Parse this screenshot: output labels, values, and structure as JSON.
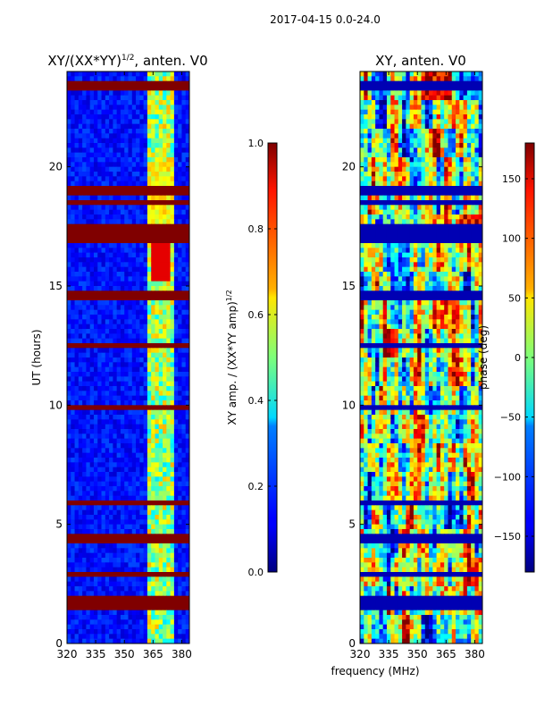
{
  "suptitle": "2017-04-15 0.0-24.0",
  "chart_data": [
    {
      "type": "heatmap",
      "title_main": "XY/(XX*YY)",
      "title_exp": "1/2",
      "title_tail": ", anten. V0",
      "xlabel": "",
      "ylabel": "UT (hours)",
      "xlim": [
        320,
        384
      ],
      "ylim": [
        0,
        24
      ],
      "xticks": [
        320,
        335,
        350,
        365,
        380
      ],
      "yticks": [
        0,
        5,
        10,
        15,
        20
      ],
      "colorbar": {
        "label_main": "XY amp. / (XX*YY amp)",
        "label_exp": "1/2",
        "range": [
          0.0,
          1.0
        ],
        "ticks": [
          "0.0",
          "0.2",
          "0.4",
          "0.6",
          "0.8",
          "1.0"
        ],
        "tick_values": [
          0.0,
          0.2,
          0.4,
          0.6,
          0.8,
          1.0
        ],
        "colormap": "jet"
      }
    },
    {
      "type": "heatmap",
      "title": "XY, anten. V0",
      "xlabel": "frequency (MHz)",
      "ylabel": "",
      "xlim": [
        320,
        384
      ],
      "ylim": [
        0,
        24
      ],
      "xticks": [
        320,
        335,
        350,
        365,
        380
      ],
      "yticks": [
        0,
        5,
        10,
        15,
        20
      ],
      "colorbar": {
        "label": "phase (deg)",
        "range": [
          -180,
          180
        ],
        "ticks": [
          "−150",
          "−100",
          "−50",
          "0",
          "50",
          "100",
          "150"
        ],
        "tick_values": [
          -150,
          -100,
          -50,
          0,
          50,
          100,
          150
        ],
        "colormap": "jet"
      }
    }
  ]
}
